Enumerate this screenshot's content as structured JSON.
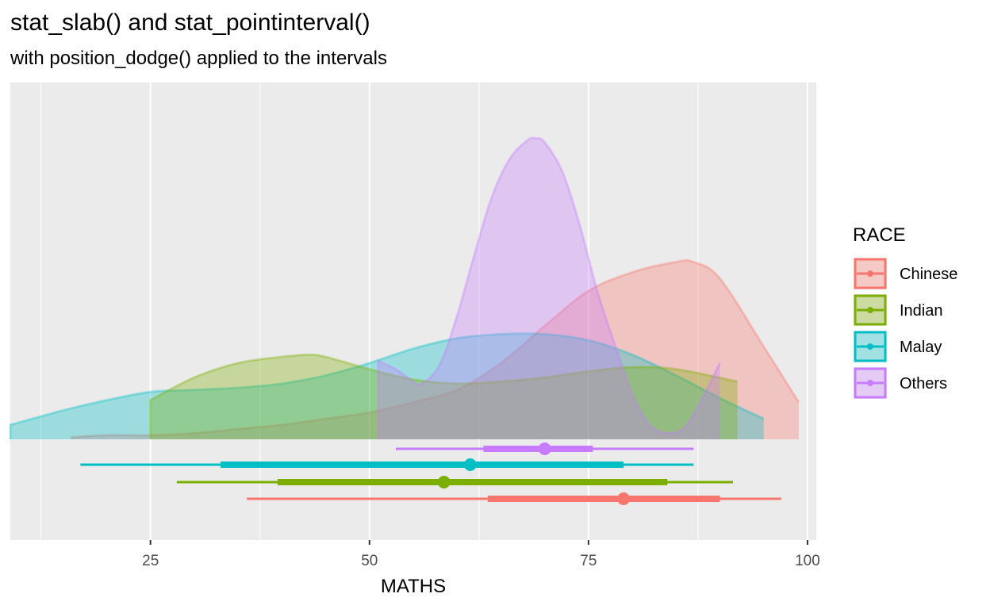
{
  "title": "stat_slab() and stat_pointinterval()",
  "subtitle": "with position_dodge() applied to the intervals",
  "chart_data": {
    "type": "density-slab with point-intervals",
    "xlabel": "MATHS",
    "ylabel": "",
    "xlim": [
      9,
      101
    ],
    "x_ticks": [
      25,
      50,
      75,
      100
    ],
    "grid": true,
    "legend": {
      "title": "RACE",
      "position": "right"
    },
    "series": [
      {
        "name": "Chinese",
        "color": "#F8766D",
        "slab_x": [
          16,
          20,
          25,
          30,
          35,
          40,
          45,
          50,
          55,
          60,
          65,
          70,
          75,
          80,
          85,
          87,
          90,
          95,
          99
        ],
        "slab_density": [
          0.01,
          0.02,
          0.02,
          0.03,
          0.05,
          0.07,
          0.1,
          0.13,
          0.18,
          0.24,
          0.37,
          0.55,
          0.72,
          0.81,
          0.86,
          0.86,
          0.78,
          0.45,
          0.18
        ],
        "interval": {
          "point": 79,
          "inner": [
            63.5,
            90
          ],
          "outer": [
            36,
            97
          ]
        }
      },
      {
        "name": "Indian",
        "color": "#7CAE00",
        "slab_x": [
          25,
          30,
          35,
          40,
          43,
          45,
          50,
          55,
          60,
          65,
          70,
          75,
          80,
          85,
          92
        ],
        "slab_density": [
          0.19,
          0.3,
          0.37,
          0.4,
          0.41,
          0.4,
          0.34,
          0.29,
          0.27,
          0.28,
          0.3,
          0.33,
          0.35,
          0.34,
          0.28
        ],
        "interval": {
          "point": 58.5,
          "inner": [
            39.5,
            84
          ],
          "outer": [
            28,
            91.5
          ]
        }
      },
      {
        "name": "Malay",
        "color": "#00BFC4",
        "slab_x": [
          9,
          15,
          20,
          25,
          30,
          35,
          40,
          45,
          50,
          55,
          60,
          65,
          70,
          75,
          80,
          85,
          90,
          95
        ],
        "slab_density": [
          0.07,
          0.14,
          0.19,
          0.23,
          0.24,
          0.25,
          0.27,
          0.31,
          0.37,
          0.44,
          0.49,
          0.51,
          0.51,
          0.48,
          0.41,
          0.31,
          0.2,
          0.1
        ],
        "interval": {
          "point": 61.5,
          "inner": [
            33,
            79
          ],
          "outer": [
            17,
            87
          ]
        }
      },
      {
        "name": "Others",
        "color": "#C77CFF",
        "slab_x": [
          51,
          53,
          55,
          56,
          58,
          60,
          62,
          64,
          66,
          68,
          69,
          70,
          72,
          74,
          76,
          78,
          80,
          82,
          84,
          86,
          88,
          90
        ],
        "slab_density": [
          0.38,
          0.34,
          0.28,
          0.27,
          0.36,
          0.6,
          0.9,
          1.18,
          1.36,
          1.45,
          1.46,
          1.44,
          1.3,
          1.04,
          0.72,
          0.46,
          0.22,
          0.07,
          0.03,
          0.06,
          0.2,
          0.37
        ],
        "interval": {
          "point": 70,
          "inner": [
            63,
            75.5
          ],
          "outer": [
            53,
            87
          ]
        }
      }
    ]
  }
}
